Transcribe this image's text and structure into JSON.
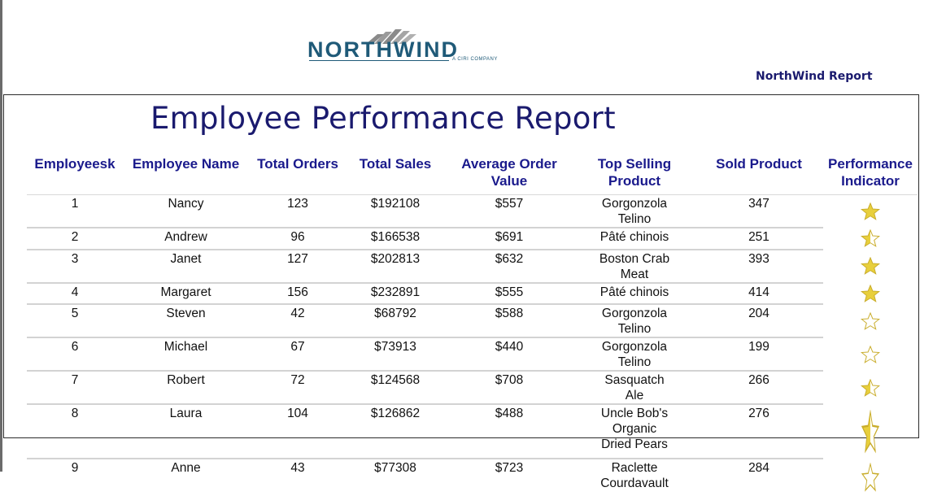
{
  "header": {
    "logo_text": "NORTHWIND",
    "logo_tagline": "A CIRI COMPANY",
    "report_name": "NorthWind Report"
  },
  "title": "Employee Performance Report",
  "columns": [
    "Employeesk",
    "Employee Name",
    "Total Orders",
    "Total Sales",
    "Average Order Value",
    "Top Selling Product",
    "Sold Product",
    "Performance Indicator"
  ],
  "rows": [
    {
      "employeesk": "1",
      "name": "Nancy",
      "orders": "123",
      "sales": "$192108",
      "avg": "$557",
      "product": "Gorgonzola Telino",
      "sold": "347",
      "indicator": "full-star-icon"
    },
    {
      "employeesk": "2",
      "name": "Andrew",
      "orders": "96",
      "sales": "$166538",
      "avg": "$691",
      "product": "Pâté chinois",
      "sold": "251",
      "indicator": "half-star-icon"
    },
    {
      "employeesk": "3",
      "name": "Janet",
      "orders": "127",
      "sales": "$202813",
      "avg": "$632",
      "product": "Boston Crab Meat",
      "sold": "393",
      "indicator": "full-star-icon"
    },
    {
      "employeesk": "4",
      "name": "Margaret",
      "orders": "156",
      "sales": "$232891",
      "avg": "$555",
      "product": "Pâté chinois",
      "sold": "414",
      "indicator": "full-star-icon"
    },
    {
      "employeesk": "5",
      "name": "Steven",
      "orders": "42",
      "sales": "$68792",
      "avg": "$588",
      "product": "Gorgonzola Telino",
      "sold": "204",
      "indicator": "empty-star-icon"
    },
    {
      "employeesk": "6",
      "name": "Michael",
      "orders": "67",
      "sales": "$73913",
      "avg": "$440",
      "product": "Gorgonzola Telino",
      "sold": "199",
      "indicator": "empty-star-icon"
    },
    {
      "employeesk": "7",
      "name": "Robert",
      "orders": "72",
      "sales": "$124568",
      "avg": "$708",
      "product": "Sasquatch Ale",
      "sold": "266",
      "indicator": "half-star-icon"
    },
    {
      "employeesk": "8",
      "name": "Laura",
      "orders": "104",
      "sales": "$126862",
      "avg": "$488",
      "product": "Uncle Bob's Organic Dried Pears",
      "sold": "276",
      "indicator": "half-star-icon"
    },
    {
      "employeesk": "9",
      "name": "Anne",
      "orders": "43",
      "sales": "$77308",
      "avg": "$723",
      "product": "Raclette Courdavault",
      "sold": "284",
      "indicator": "empty-star-icon"
    }
  ],
  "colors": {
    "title": "#1a1a6e",
    "header_text": "#1a1a8c",
    "star_fill": "#e8cf3c",
    "star_outline": "#c9ad2c"
  }
}
